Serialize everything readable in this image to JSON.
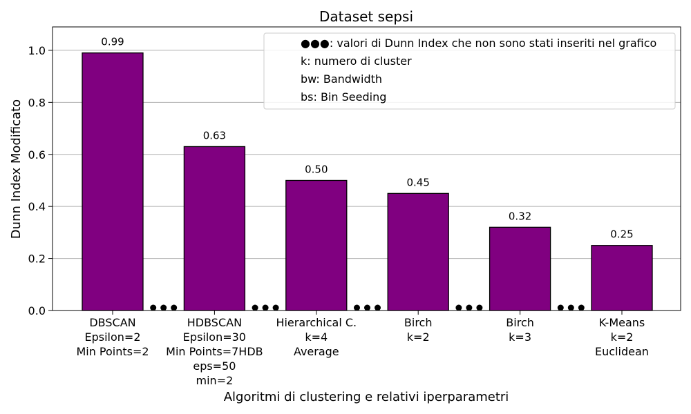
{
  "chart_data": {
    "type": "bar",
    "title": "Dataset sepsi",
    "xlabel": "Algoritmi di clustering e relativi iperparametri",
    "ylabel": "Dunn Index Modificato",
    "ylim": [
      0,
      1.09
    ],
    "yticks": [
      "0.0",
      "0.2",
      "0.4",
      "0.6",
      "0.8",
      "1.0"
    ],
    "grid": "y",
    "bar_color": "#800080",
    "categories": [
      [
        "DBSCAN",
        "Epsilon=2",
        "Min Points=2"
      ],
      [
        "HDBSCAN",
        "Epsilon=30",
        "Min Points=7HDB",
        "eps=50",
        "min=2"
      ],
      [
        "Hierarchical C.",
        "k=4",
        "Average"
      ],
      [
        "Birch",
        "k=2"
      ],
      [
        "Birch",
        "k=3"
      ],
      [
        "K-Means",
        "k=2",
        "Euclidean"
      ]
    ],
    "values": [
      0.99,
      0.63,
      0.5,
      0.45,
      0.32,
      0.25
    ],
    "value_labels": [
      "0.99",
      "0.63",
      "0.50",
      "0.45",
      "0.32",
      "0.25"
    ],
    "gap_marker": "●●●",
    "legend": {
      "placement": "top-right",
      "entries": [
        "●●●: valori di Dunn Index che non sono stati inseriti nel grafico",
        "k: numero di cluster",
        "bw: Bandwidth",
        "bs: Bin Seeding"
      ]
    }
  }
}
